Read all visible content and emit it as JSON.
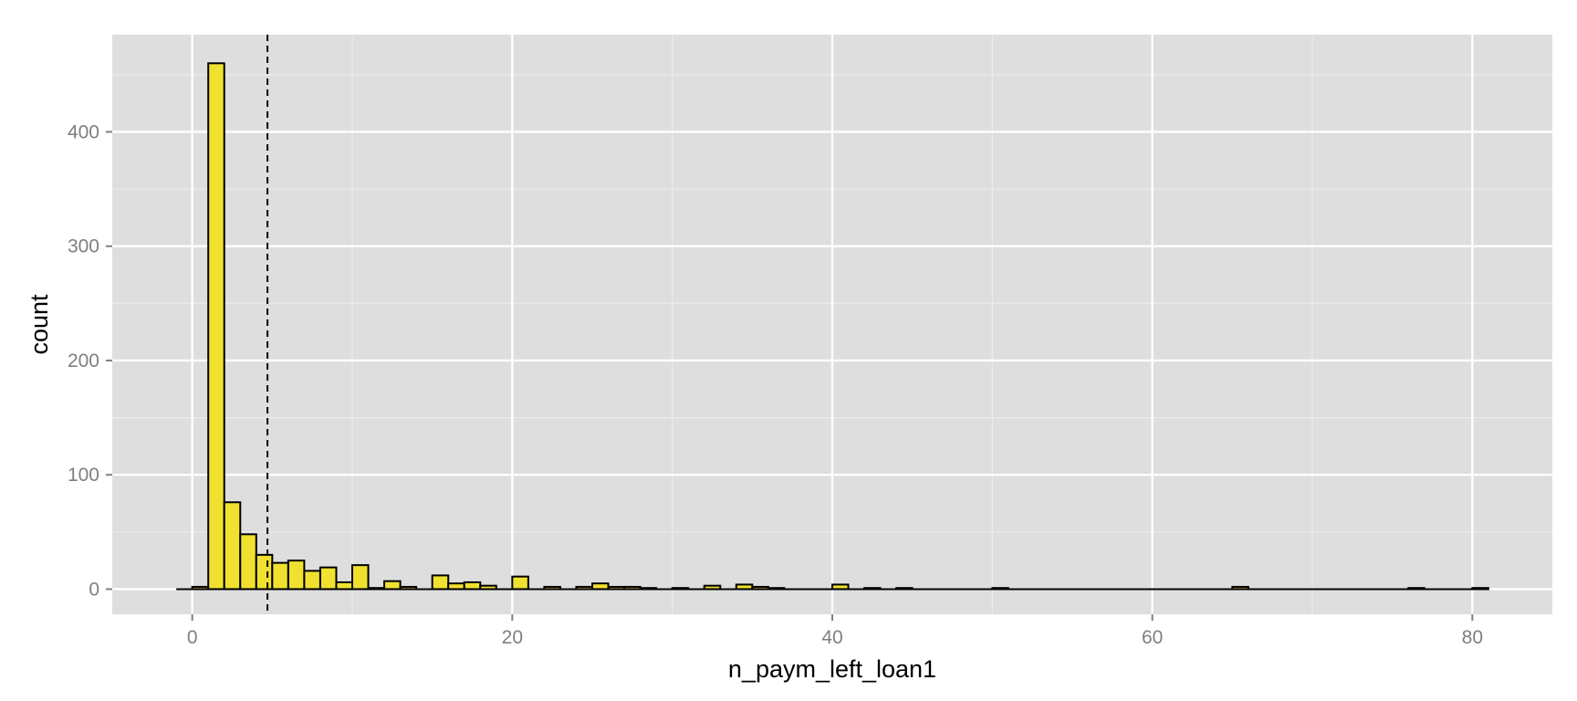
{
  "chart_data": {
    "type": "bar",
    "subtype": "histogram",
    "title": "",
    "xlabel": "n_paym_left_loan1",
    "ylabel": "count",
    "xlim": [
      -5,
      85
    ],
    "ylim": [
      -22,
      485
    ],
    "x_ticks": [
      0,
      20,
      40,
      60,
      80
    ],
    "x_tick_labels": [
      "0",
      "20",
      "40",
      "60",
      "80"
    ],
    "y_ticks": [
      0,
      100,
      200,
      300,
      400
    ],
    "y_tick_labels": [
      "0",
      "100",
      "200",
      "300",
      "400"
    ],
    "grid": true,
    "legend": "none",
    "bin_width": 1,
    "bins": [
      {
        "x": 0,
        "count": 2
      },
      {
        "x": 1,
        "count": 460
      },
      {
        "x": 2,
        "count": 76
      },
      {
        "x": 3,
        "count": 48
      },
      {
        "x": 4,
        "count": 30
      },
      {
        "x": 5,
        "count": 23
      },
      {
        "x": 6,
        "count": 25
      },
      {
        "x": 7,
        "count": 16
      },
      {
        "x": 8,
        "count": 19
      },
      {
        "x": 9,
        "count": 6
      },
      {
        "x": 10,
        "count": 21
      },
      {
        "x": 11,
        "count": 1
      },
      {
        "x": 12,
        "count": 7
      },
      {
        "x": 13,
        "count": 2
      },
      {
        "x": 15,
        "count": 12
      },
      {
        "x": 16,
        "count": 5
      },
      {
        "x": 17,
        "count": 6
      },
      {
        "x": 18,
        "count": 3
      },
      {
        "x": 20,
        "count": 11
      },
      {
        "x": 22,
        "count": 2
      },
      {
        "x": 24,
        "count": 2
      },
      {
        "x": 25,
        "count": 5
      },
      {
        "x": 26,
        "count": 2
      },
      {
        "x": 27,
        "count": 2
      },
      {
        "x": 28,
        "count": 1
      },
      {
        "x": 30,
        "count": 1
      },
      {
        "x": 32,
        "count": 3
      },
      {
        "x": 34,
        "count": 4
      },
      {
        "x": 35,
        "count": 2
      },
      {
        "x": 36,
        "count": 1
      },
      {
        "x": 40,
        "count": 4
      },
      {
        "x": 42,
        "count": 1
      },
      {
        "x": 44,
        "count": 1
      },
      {
        "x": 50,
        "count": 1
      },
      {
        "x": 65,
        "count": 2
      },
      {
        "x": 76,
        "count": 1
      },
      {
        "x": 80,
        "count": 1
      }
    ],
    "reference_line": {
      "x": 4.7,
      "style": "dashed"
    },
    "colors": {
      "panel_background": "#dedede",
      "grid_major": "#ffffff",
      "grid_minor": "#ececec",
      "bar_fill": "#f0e130",
      "bar_stroke": "#000000",
      "tick_text": "#7f7f7f",
      "axis_title": "#000000"
    }
  }
}
